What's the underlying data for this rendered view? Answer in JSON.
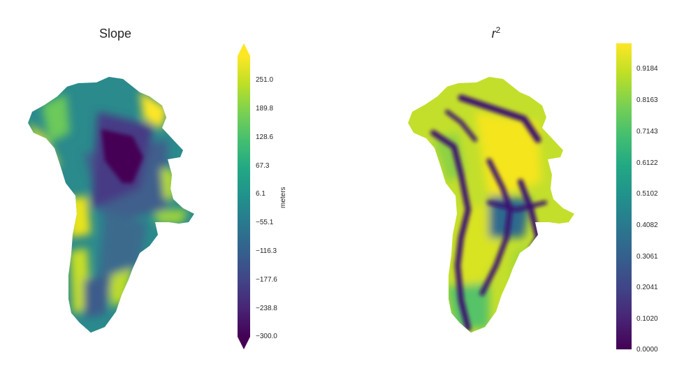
{
  "left_panel": {
    "title": "Slope",
    "colorbar": {
      "label": "meters",
      "colormap": "viridis",
      "extend": "both",
      "range": [
        -300.0,
        300.0
      ],
      "ticks": [
        "251.0",
        "189.8",
        "128.6",
        "67.3",
        "6.1",
        "−55.1",
        "−116.3",
        "−177.6",
        "−238.8",
        "−300.0"
      ],
      "tick_values": [
        251.0,
        189.8,
        128.6,
        67.3,
        6.1,
        -55.1,
        -116.3,
        -177.6,
        -238.8,
        -300.0
      ]
    }
  },
  "right_panel": {
    "title": "r",
    "title_superscript": "2",
    "colorbar": {
      "colormap": "viridis",
      "range": [
        0.0,
        1.0
      ],
      "ticks": [
        "0.9184",
        "0.8163",
        "0.7143",
        "0.6122",
        "0.5102",
        "0.4082",
        "0.3061",
        "0.2041",
        "0.1020",
        "0.0000"
      ],
      "tick_values": [
        0.9184,
        0.8163,
        0.7143,
        0.6122,
        0.5102,
        0.4082,
        0.3061,
        0.2041,
        0.102,
        0.0
      ]
    }
  },
  "colors": {
    "viridis_low": "#440154",
    "viridis_mid": "#21918c",
    "viridis_high": "#fde725"
  }
}
